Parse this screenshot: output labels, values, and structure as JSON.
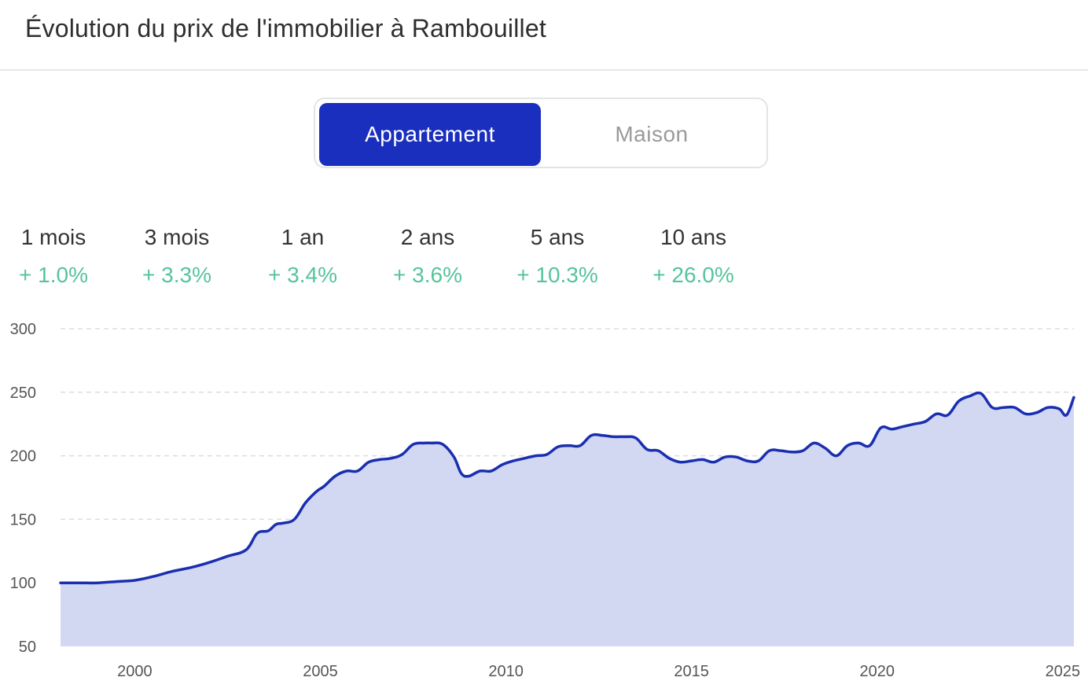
{
  "header": {
    "title": "Évolution du prix de l'immobilier à Rambouillet"
  },
  "toggle": {
    "options": [
      {
        "label": "Appartement",
        "active": true
      },
      {
        "label": "Maison",
        "active": false
      }
    ]
  },
  "stats": [
    {
      "period": "1 mois",
      "change": "+ 1.0%"
    },
    {
      "period": "3 mois",
      "change": "+ 3.3%"
    },
    {
      "period": "1 an",
      "change": "+ 3.4%"
    },
    {
      "period": "2 ans",
      "change": "+ 3.6%"
    },
    {
      "period": "5 ans",
      "change": "+ 10.3%"
    },
    {
      "period": "10 ans",
      "change": "+ 26.0%"
    }
  ],
  "colors": {
    "accent": "#1a2fbd",
    "positive": "#56c49b",
    "area_fill": "#d2d8f2",
    "line": "#1a2fb0",
    "grid": "#dddddd"
  },
  "chart_data": {
    "type": "area",
    "title": "",
    "xlabel": "",
    "ylabel": "",
    "xlim": [
      1998,
      2025.3
    ],
    "ylim": [
      50,
      300
    ],
    "y_ticks": [
      50,
      100,
      150,
      200,
      250,
      300
    ],
    "x_ticks": [
      2000,
      2005,
      2010,
      2015,
      2020,
      2025
    ],
    "grid": true,
    "series": [
      {
        "x": [
          1998.0,
          1998.5,
          1999.0,
          1999.5,
          2000.0,
          2000.5,
          2001.0,
          2001.5,
          2002.0,
          2002.5,
          2003.0,
          2003.3,
          2003.6,
          2003.8,
          2004.0,
          2004.3,
          2004.6,
          2004.9,
          2005.1,
          2005.4,
          2005.7,
          2006.0,
          2006.3,
          2006.6,
          2006.9,
          2007.2,
          2007.5,
          2007.8,
          2008.0,
          2008.3,
          2008.6,
          2008.8,
          2009.0,
          2009.3,
          2009.6,
          2009.9,
          2010.2,
          2010.5,
          2010.8,
          2011.1,
          2011.4,
          2011.7,
          2012.0,
          2012.3,
          2012.6,
          2012.9,
          2013.2,
          2013.5,
          2013.8,
          2014.1,
          2014.4,
          2014.7,
          2015.0,
          2015.3,
          2015.6,
          2015.9,
          2016.2,
          2016.5,
          2016.8,
          2017.1,
          2017.4,
          2017.7,
          2018.0,
          2018.3,
          2018.6,
          2018.9,
          2019.2,
          2019.5,
          2019.8,
          2020.1,
          2020.4,
          2020.7,
          2021.0,
          2021.3,
          2021.6,
          2021.9,
          2022.2,
          2022.5,
          2022.8,
          2023.1,
          2023.4,
          2023.7,
          2024.0,
          2024.3,
          2024.6,
          2024.9,
          2025.1,
          2025.3
        ],
        "y": [
          100,
          100,
          100,
          101,
          102,
          105,
          109,
          112,
          116,
          121,
          126,
          139,
          141,
          146,
          147,
          150,
          163,
          172,
          176,
          184,
          188,
          188,
          195,
          197,
          198,
          201,
          209,
          210,
          210,
          209,
          199,
          186,
          184,
          188,
          188,
          193,
          196,
          198,
          200,
          201,
          207,
          208,
          208,
          216,
          216,
          215,
          215,
          214,
          205,
          204,
          198,
          195,
          196,
          197,
          195,
          199,
          199,
          196,
          196,
          204,
          204,
          203,
          204,
          210,
          206,
          200,
          208,
          210,
          208,
          222,
          221,
          223,
          225,
          227,
          233,
          232,
          243,
          247,
          249,
          238,
          238,
          238,
          233,
          234,
          238,
          237,
          232,
          246
        ]
      }
    ]
  }
}
